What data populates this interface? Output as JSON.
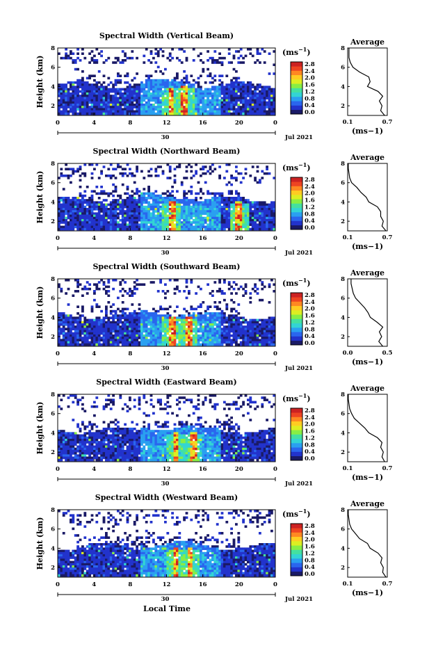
{
  "figure": {
    "x_axis_label": "Local Time",
    "unit_label": "(ms",
    "unit_exp": "−1",
    "unit_close": ")",
    "date_label": "Jul 2021",
    "date_day": "30",
    "average_title": "Average",
    "height_label": "Height (km)"
  },
  "colorbar": {
    "ticks": [
      "2.8",
      "2.4",
      "2.0",
      "1.6",
      "1.2",
      "0.8",
      "0.4",
      "0.0"
    ],
    "colors": [
      "#1a1a66",
      "#2233cc",
      "#2a66ee",
      "#2aa0f0",
      "#33d4d4",
      "#44e0a0",
      "#88ee44",
      "#ddee22",
      "#ffcc22",
      "#ff8822",
      "#ee4422",
      "#cc2222"
    ]
  },
  "chart_data": [
    {
      "type": "heatmap",
      "title": "Spectral Width (Vertical Beam)",
      "ylabel": "Height (km)",
      "xlabel": "",
      "x_ticks": [
        "0",
        "4",
        "8",
        "12",
        "16",
        "20",
        "0"
      ],
      "y_ticks": [
        "8",
        "6",
        "4",
        "2"
      ],
      "xlim": [
        0,
        24
      ],
      "ylim": [
        1,
        8
      ],
      "colorbar_range": [
        0.0,
        2.8
      ],
      "layer_top_km": 4.2,
      "peak_hours": [
        12.5,
        14.0
      ],
      "average_profile": {
        "xlabel": "(ms−1)",
        "x_ticks": [
          "0.1",
          "0.7"
        ],
        "xlim": [
          0.1,
          0.7
        ],
        "height": [
          1,
          1.5,
          2,
          2.5,
          3,
          3.5,
          4,
          4.5,
          5,
          5.5,
          6,
          6.5,
          7,
          7.5,
          8
        ],
        "value": [
          0.66,
          0.6,
          0.62,
          0.58,
          0.63,
          0.56,
          0.4,
          0.44,
          0.42,
          0.28,
          0.18,
          0.14,
          0.12,
          0.12,
          0.12
        ]
      }
    },
    {
      "type": "heatmap",
      "title": "Spectral Width (Northward Beam)",
      "ylabel": "Height (km)",
      "xlabel": "",
      "x_ticks": [
        "0",
        "4",
        "8",
        "12",
        "16",
        "20",
        "0"
      ],
      "y_ticks": [
        "8",
        "6",
        "4",
        "2"
      ],
      "xlim": [
        0,
        24
      ],
      "ylim": [
        1,
        8
      ],
      "colorbar_range": [
        0.0,
        2.8
      ],
      "layer_top_km": 4.3,
      "peak_hours": [
        12.6,
        20.0
      ],
      "average_profile": {
        "xlabel": "(ms−1)",
        "x_ticks": [
          "0.1",
          "0.7"
        ],
        "xlim": [
          0.1,
          0.7
        ],
        "height": [
          1,
          1.5,
          2,
          2.5,
          3,
          3.5,
          4,
          4.5,
          5,
          5.5,
          6,
          6.5,
          7,
          7.5,
          8
        ],
        "value": [
          0.68,
          0.62,
          0.64,
          0.6,
          0.6,
          0.55,
          0.42,
          0.38,
          0.3,
          0.24,
          0.16,
          0.13,
          0.12,
          0.11,
          0.11
        ]
      }
    },
    {
      "type": "heatmap",
      "title": "Spectral Width (Southward Beam)",
      "ylabel": "Height (km)",
      "xlabel": "",
      "x_ticks": [
        "0",
        "4",
        "8",
        "12",
        "16",
        "20",
        "0"
      ],
      "y_ticks": [
        "8",
        "6",
        "4",
        "2"
      ],
      "xlim": [
        0,
        24
      ],
      "ylim": [
        1,
        8
      ],
      "colorbar_range": [
        0.0,
        2.8
      ],
      "layer_top_km": 4.2,
      "peak_hours": [
        12.6,
        14.5
      ],
      "average_profile": {
        "xlabel": "(ms−1)",
        "x_ticks": [
          "0.0",
          "0.5"
        ],
        "xlim": [
          0.0,
          0.7
        ],
        "height": [
          1,
          1.5,
          2,
          2.5,
          3,
          3.5,
          4,
          4.5,
          5,
          5.5,
          6,
          6.5,
          7,
          7.5,
          8
        ],
        "value": [
          0.62,
          0.55,
          0.6,
          0.56,
          0.62,
          0.52,
          0.4,
          0.36,
          0.3,
          0.22,
          0.14,
          0.1,
          0.08,
          0.06,
          0.06
        ]
      }
    },
    {
      "type": "heatmap",
      "title": "Spectral Width (Eastward Beam)",
      "ylabel": "Height (km)",
      "xlabel": "",
      "x_ticks": [
        "0",
        "4",
        "8",
        "12",
        "16",
        "20",
        "0"
      ],
      "y_ticks": [
        "8",
        "6",
        "4",
        "2"
      ],
      "xlim": [
        0,
        24
      ],
      "ylim": [
        1,
        8
      ],
      "colorbar_range": [
        0.0,
        2.8
      ],
      "layer_top_km": 4.3,
      "peak_hours": [
        13.0,
        15.0
      ],
      "average_profile": {
        "xlabel": "(ms−1)",
        "x_ticks": [
          "0.1",
          "0.7"
        ],
        "xlim": [
          0.1,
          0.7
        ],
        "height": [
          1,
          1.5,
          2,
          2.5,
          3,
          3.5,
          4,
          4.5,
          5,
          5.5,
          6,
          6.5,
          7,
          7.5,
          8
        ],
        "value": [
          0.66,
          0.62,
          0.64,
          0.6,
          0.62,
          0.55,
          0.42,
          0.36,
          0.28,
          0.2,
          0.16,
          0.13,
          0.12,
          0.11,
          0.11
        ]
      }
    },
    {
      "type": "heatmap",
      "title": "Spectral Width (Westward Beam)",
      "ylabel": "Height (km)",
      "xlabel": "Local Time",
      "x_ticks": [
        "0",
        "4",
        "8",
        "12",
        "16",
        "20",
        "0"
      ],
      "y_ticks": [
        "8",
        "6",
        "4",
        "2"
      ],
      "xlim": [
        0,
        24
      ],
      "ylim": [
        1,
        8
      ],
      "colorbar_range": [
        0.0,
        2.8
      ],
      "layer_top_km": 4.2,
      "peak_hours": [
        13.0,
        14.6
      ],
      "average_profile": {
        "xlabel": "(ms−1)",
        "x_ticks": [
          "0.1",
          "0.7"
        ],
        "xlim": [
          0.1,
          0.7
        ],
        "height": [
          1,
          1.5,
          2,
          2.5,
          3,
          3.5,
          4,
          4.5,
          5,
          5.5,
          6,
          6.5,
          7,
          7.5,
          8
        ],
        "value": [
          0.68,
          0.63,
          0.64,
          0.6,
          0.62,
          0.56,
          0.44,
          0.4,
          0.28,
          0.22,
          0.16,
          0.13,
          0.12,
          0.11,
          0.11
        ]
      }
    }
  ]
}
